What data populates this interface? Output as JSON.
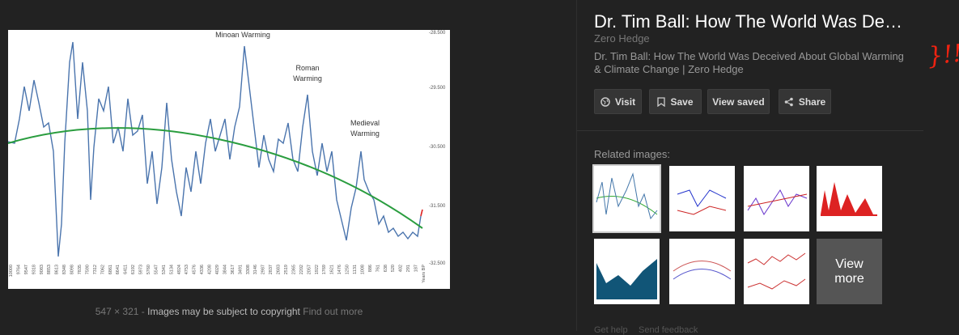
{
  "preview_image": {
    "annotations": [
      "Minoan Warming",
      "Roman",
      "Warming",
      "Medieval",
      "Warming"
    ],
    "y_labels": [
      "-28.500",
      "-29.500",
      "-30.500",
      "-31.500",
      "-32.500"
    ],
    "x_labels": [
      "10000",
      "9764",
      "9547",
      "9318",
      "9083",
      "8853",
      "8613",
      "8348",
      "8098",
      "7835",
      "7590",
      "7312",
      "7062",
      "6861",
      "6641",
      "6411",
      "6192",
      "5973",
      "5760",
      "5547",
      "5341",
      "5134",
      "4924",
      "4753",
      "4576",
      "4336",
      "4208",
      "4029",
      "3844",
      "3617",
      "3491",
      "3308",
      "3146",
      "2987",
      "2837",
      "2683",
      "2519",
      "2365",
      "2202",
      "2057",
      "1922",
      "1769",
      "1621",
      "1476",
      "1250",
      "1131",
      "1008",
      "886",
      "761",
      "638",
      "520",
      "402",
      "291",
      "187",
      "Years BP"
    ]
  },
  "image_info": {
    "size": "547 × 321",
    "separator": "-",
    "copyright": "Images may be subject to copyright",
    "find_out_more": "Find out more"
  },
  "panel": {
    "title": "Dr. Tim Ball: How The World Was De…",
    "source": "Zero Hedge",
    "description": "Dr. Tim Ball: How The World Was Deceived About Global Warming & Climate Change | Zero Hedge",
    "buttons": [
      "Visit",
      "Save",
      "View saved",
      "Share"
    ],
    "related_heading": "Related images:",
    "view_more": [
      "View",
      "more"
    ],
    "footer": [
      "Get help",
      "Send feedback"
    ]
  },
  "scribble": "}!!!"
}
